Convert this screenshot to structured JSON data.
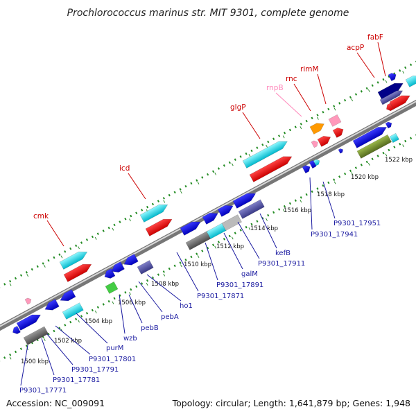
{
  "title": "Prochlorococcus marinus str. MIT 9301, complete genome",
  "footer": {
    "accession": "Accession: NC_009091",
    "topology": "Topology: circular; Length: 1,641,879 bp; Genes: 1,948"
  },
  "scale_ticks": [
    "1500 kbp",
    "1502 kbp",
    "1504 kbp",
    "1506 kbp",
    "1508 kbp",
    "1510 kbp",
    "1512 kbp",
    "1514 kbp",
    "1516 kbp",
    "1518 kbp",
    "1520 kbp",
    "1522 kbp"
  ],
  "top_labels": [
    {
      "text": "cmk",
      "color": "#cc0000"
    },
    {
      "text": "icd",
      "color": "#cc0000"
    },
    {
      "text": "glgP",
      "color": "#cc0000"
    },
    {
      "text": "rnpB",
      "color": "#ff88bb"
    },
    {
      "text": "rnc",
      "color": "#cc0000"
    },
    {
      "text": "rimM",
      "color": "#cc0000"
    },
    {
      "text": "acpP",
      "color": "#cc0000"
    },
    {
      "text": "fabF",
      "color": "#cc0000"
    }
  ],
  "bottom_labels": [
    "P9301_17771",
    "P9301_17781",
    "P9301_17791",
    "P9301_17801",
    "purM",
    "wzb",
    "pebB",
    "pebA",
    "ho1",
    "P9301_17871",
    "P9301_17891",
    "galM",
    "P9301_17911",
    "kefB",
    "P9301_17941",
    "P9301_17951"
  ],
  "colors": {
    "red": "#ff0000",
    "cyan": "#00e0e8",
    "blue": "#0000ee",
    "gray": "#707070",
    "navy": "#5050a0",
    "green": "#44cc44",
    "olive": "#6b8e23",
    "orange": "#ff9900",
    "pink": "#ff99bb",
    "darkblue": "#000088",
    "silver": "#bbbbbb",
    "dotgreen": "#228b22"
  }
}
